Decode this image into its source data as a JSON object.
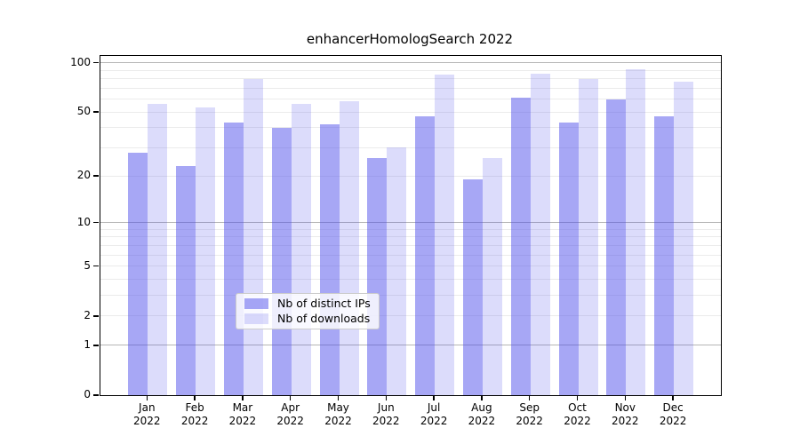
{
  "chart_data": {
    "type": "bar",
    "title": "enhancerHomologSearch 2022",
    "yscale": "log1p",
    "ylim": [
      0,
      110
    ],
    "y_ticks": [
      100,
      50,
      20,
      10,
      5,
      2,
      1,
      0
    ],
    "major_gridlines": [
      1,
      10,
      100
    ],
    "minor_gridlines": [
      2,
      3,
      4,
      5,
      6,
      7,
      8,
      9,
      20,
      30,
      40,
      50,
      60,
      70,
      80,
      90
    ],
    "categories": [
      "Jan",
      "Feb",
      "Mar",
      "Apr",
      "May",
      "Jun",
      "Jul",
      "Aug",
      "Sep",
      "Oct",
      "Nov",
      "Dec"
    ],
    "year": "2022",
    "series": [
      {
        "name": "Nb of distinct IPs",
        "color": "#5050eb80",
        "values": [
          28,
          23,
          43,
          40,
          42,
          26,
          47,
          19,
          61,
          43,
          60,
          47
        ]
      },
      {
        "name": "Nb of downloads",
        "color": "#5050eb33",
        "values": [
          56,
          53,
          80,
          56,
          58,
          30,
          85,
          26,
          86,
          80,
          91,
          77
        ]
      }
    ],
    "legend_position": "bottom-center",
    "grid": true,
    "axis_color": "#000000",
    "major_grid_color": "#b5b5b5",
    "minor_grid_color": "#ebebeb",
    "background_color": "#ffffff"
  }
}
